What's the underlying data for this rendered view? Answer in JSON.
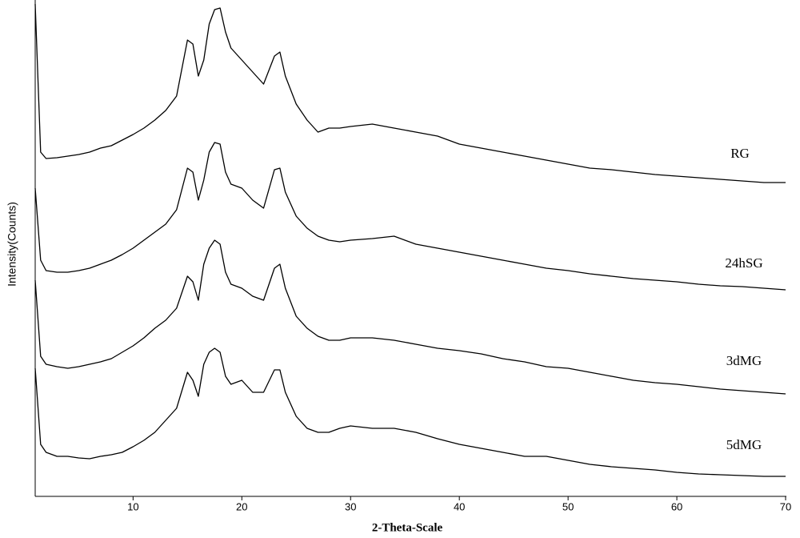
{
  "chart_data": {
    "type": "line",
    "x_label": "2-Theta-Scale",
    "y_label": "Intensity(Counts)",
    "xlim": [
      1,
      70
    ],
    "xticks": [
      10,
      20,
      30,
      40,
      50,
      60,
      70
    ],
    "ylim": [
      0,
      620
    ],
    "x": [
      1,
      1.5,
      2,
      3,
      4,
      5,
      6,
      7,
      8,
      9,
      10,
      11,
      12,
      13,
      14,
      15,
      15.5,
      16,
      16.5,
      17,
      17.5,
      18,
      18.5,
      19,
      20,
      21,
      22,
      23,
      23.5,
      24,
      25,
      26,
      27,
      28,
      29,
      30,
      32,
      34,
      36,
      38,
      40,
      42,
      44,
      46,
      48,
      50,
      52,
      54,
      56,
      58,
      60,
      62,
      64,
      66,
      68,
      70
    ],
    "series": [
      {
        "name": "RG",
        "color": "#000000",
        "values": [
          615,
          430,
          422,
          423,
          425,
          427,
          430,
          435,
          438,
          445,
          452,
          460,
          470,
          482,
          500,
          570,
          565,
          525,
          545,
          590,
          608,
          610,
          580,
          560,
          545,
          530,
          515,
          550,
          555,
          525,
          490,
          470,
          455,
          460,
          460,
          462,
          465,
          460,
          455,
          450,
          440,
          435,
          430,
          425,
          420,
          415,
          410,
          408,
          405,
          402,
          400,
          398,
          396,
          394,
          392,
          392
        ]
      },
      {
        "name": "24hSG",
        "color": "#000000",
        "values": [
          385,
          295,
          282,
          280,
          280,
          282,
          285,
          290,
          295,
          302,
          310,
          320,
          330,
          340,
          358,
          410,
          405,
          370,
          395,
          430,
          442,
          440,
          405,
          390,
          385,
          370,
          360,
          408,
          410,
          380,
          350,
          335,
          325,
          320,
          318,
          320,
          322,
          325,
          315,
          310,
          305,
          300,
          295,
          290,
          285,
          282,
          278,
          275,
          272,
          270,
          268,
          265,
          263,
          262,
          260,
          258
        ]
      },
      {
        "name": "3dMG",
        "color": "#000000",
        "values": [
          270,
          175,
          165,
          162,
          160,
          162,
          165,
          168,
          172,
          180,
          188,
          198,
          210,
          220,
          235,
          275,
          268,
          245,
          290,
          310,
          320,
          315,
          280,
          265,
          260,
          250,
          245,
          285,
          290,
          260,
          225,
          210,
          200,
          195,
          195,
          198,
          198,
          195,
          190,
          185,
          182,
          178,
          172,
          168,
          162,
          160,
          155,
          150,
          145,
          142,
          140,
          137,
          134,
          132,
          130,
          128
        ]
      },
      {
        "name": "5dMG",
        "color": "#000000",
        "values": [
          160,
          65,
          55,
          50,
          50,
          48,
          47,
          50,
          52,
          55,
          62,
          70,
          80,
          95,
          110,
          155,
          145,
          125,
          165,
          180,
          185,
          180,
          150,
          140,
          145,
          130,
          130,
          158,
          158,
          130,
          100,
          85,
          80,
          80,
          85,
          88,
          85,
          85,
          80,
          72,
          65,
          60,
          55,
          50,
          50,
          45,
          40,
          37,
          35,
          33,
          30,
          28,
          27,
          26,
          25,
          25
        ]
      }
    ]
  }
}
